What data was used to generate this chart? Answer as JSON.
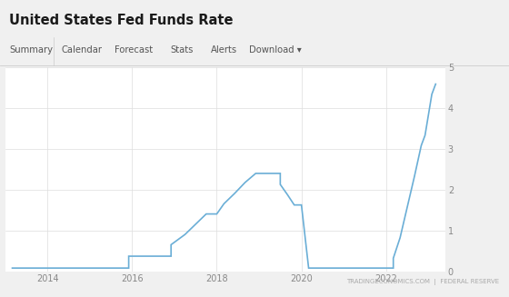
{
  "title": "United States Fed Funds Rate",
  "nav_items": [
    "Summary",
    "Calendar",
    "Forecast",
    "Stats",
    "Alerts",
    "Download ▾"
  ],
  "footer_text": "TRADINGECONOMICS.COM  |  FEDERAL RESERVE",
  "line_color": "#6aaed6",
  "line_width": 1.2,
  "bg_color": "#f0f0f0",
  "chart_bg": "#ffffff",
  "nav_bg": "#f8f8f8",
  "ylim": [
    0,
    5
  ],
  "yticks": [
    0,
    1,
    2,
    3,
    4,
    5
  ],
  "grid_color": "#dddddd",
  "data": [
    [
      2013.17,
      0.09
    ],
    [
      2015.92,
      0.09
    ],
    [
      2015.92,
      0.38
    ],
    [
      2016.92,
      0.38
    ],
    [
      2016.92,
      0.66
    ],
    [
      2017.25,
      0.91
    ],
    [
      2017.5,
      1.16
    ],
    [
      2017.75,
      1.41
    ],
    [
      2018.0,
      1.41
    ],
    [
      2018.17,
      1.66
    ],
    [
      2018.42,
      1.91
    ],
    [
      2018.67,
      2.18
    ],
    [
      2018.92,
      2.4
    ],
    [
      2019.5,
      2.4
    ],
    [
      2019.5,
      2.13
    ],
    [
      2019.67,
      1.88
    ],
    [
      2019.83,
      1.63
    ],
    [
      2020.0,
      1.63
    ],
    [
      2020.17,
      0.09
    ],
    [
      2022.17,
      0.09
    ],
    [
      2022.17,
      0.33
    ],
    [
      2022.33,
      0.83
    ],
    [
      2022.5,
      1.58
    ],
    [
      2022.67,
      2.33
    ],
    [
      2022.83,
      3.08
    ],
    [
      2022.92,
      3.33
    ],
    [
      2023.0,
      3.83
    ],
    [
      2023.08,
      4.33
    ],
    [
      2023.17,
      4.58
    ]
  ],
  "xticks": [
    2014,
    2016,
    2018,
    2020,
    2022
  ],
  "xlim": [
    2013.0,
    2023.4
  ]
}
